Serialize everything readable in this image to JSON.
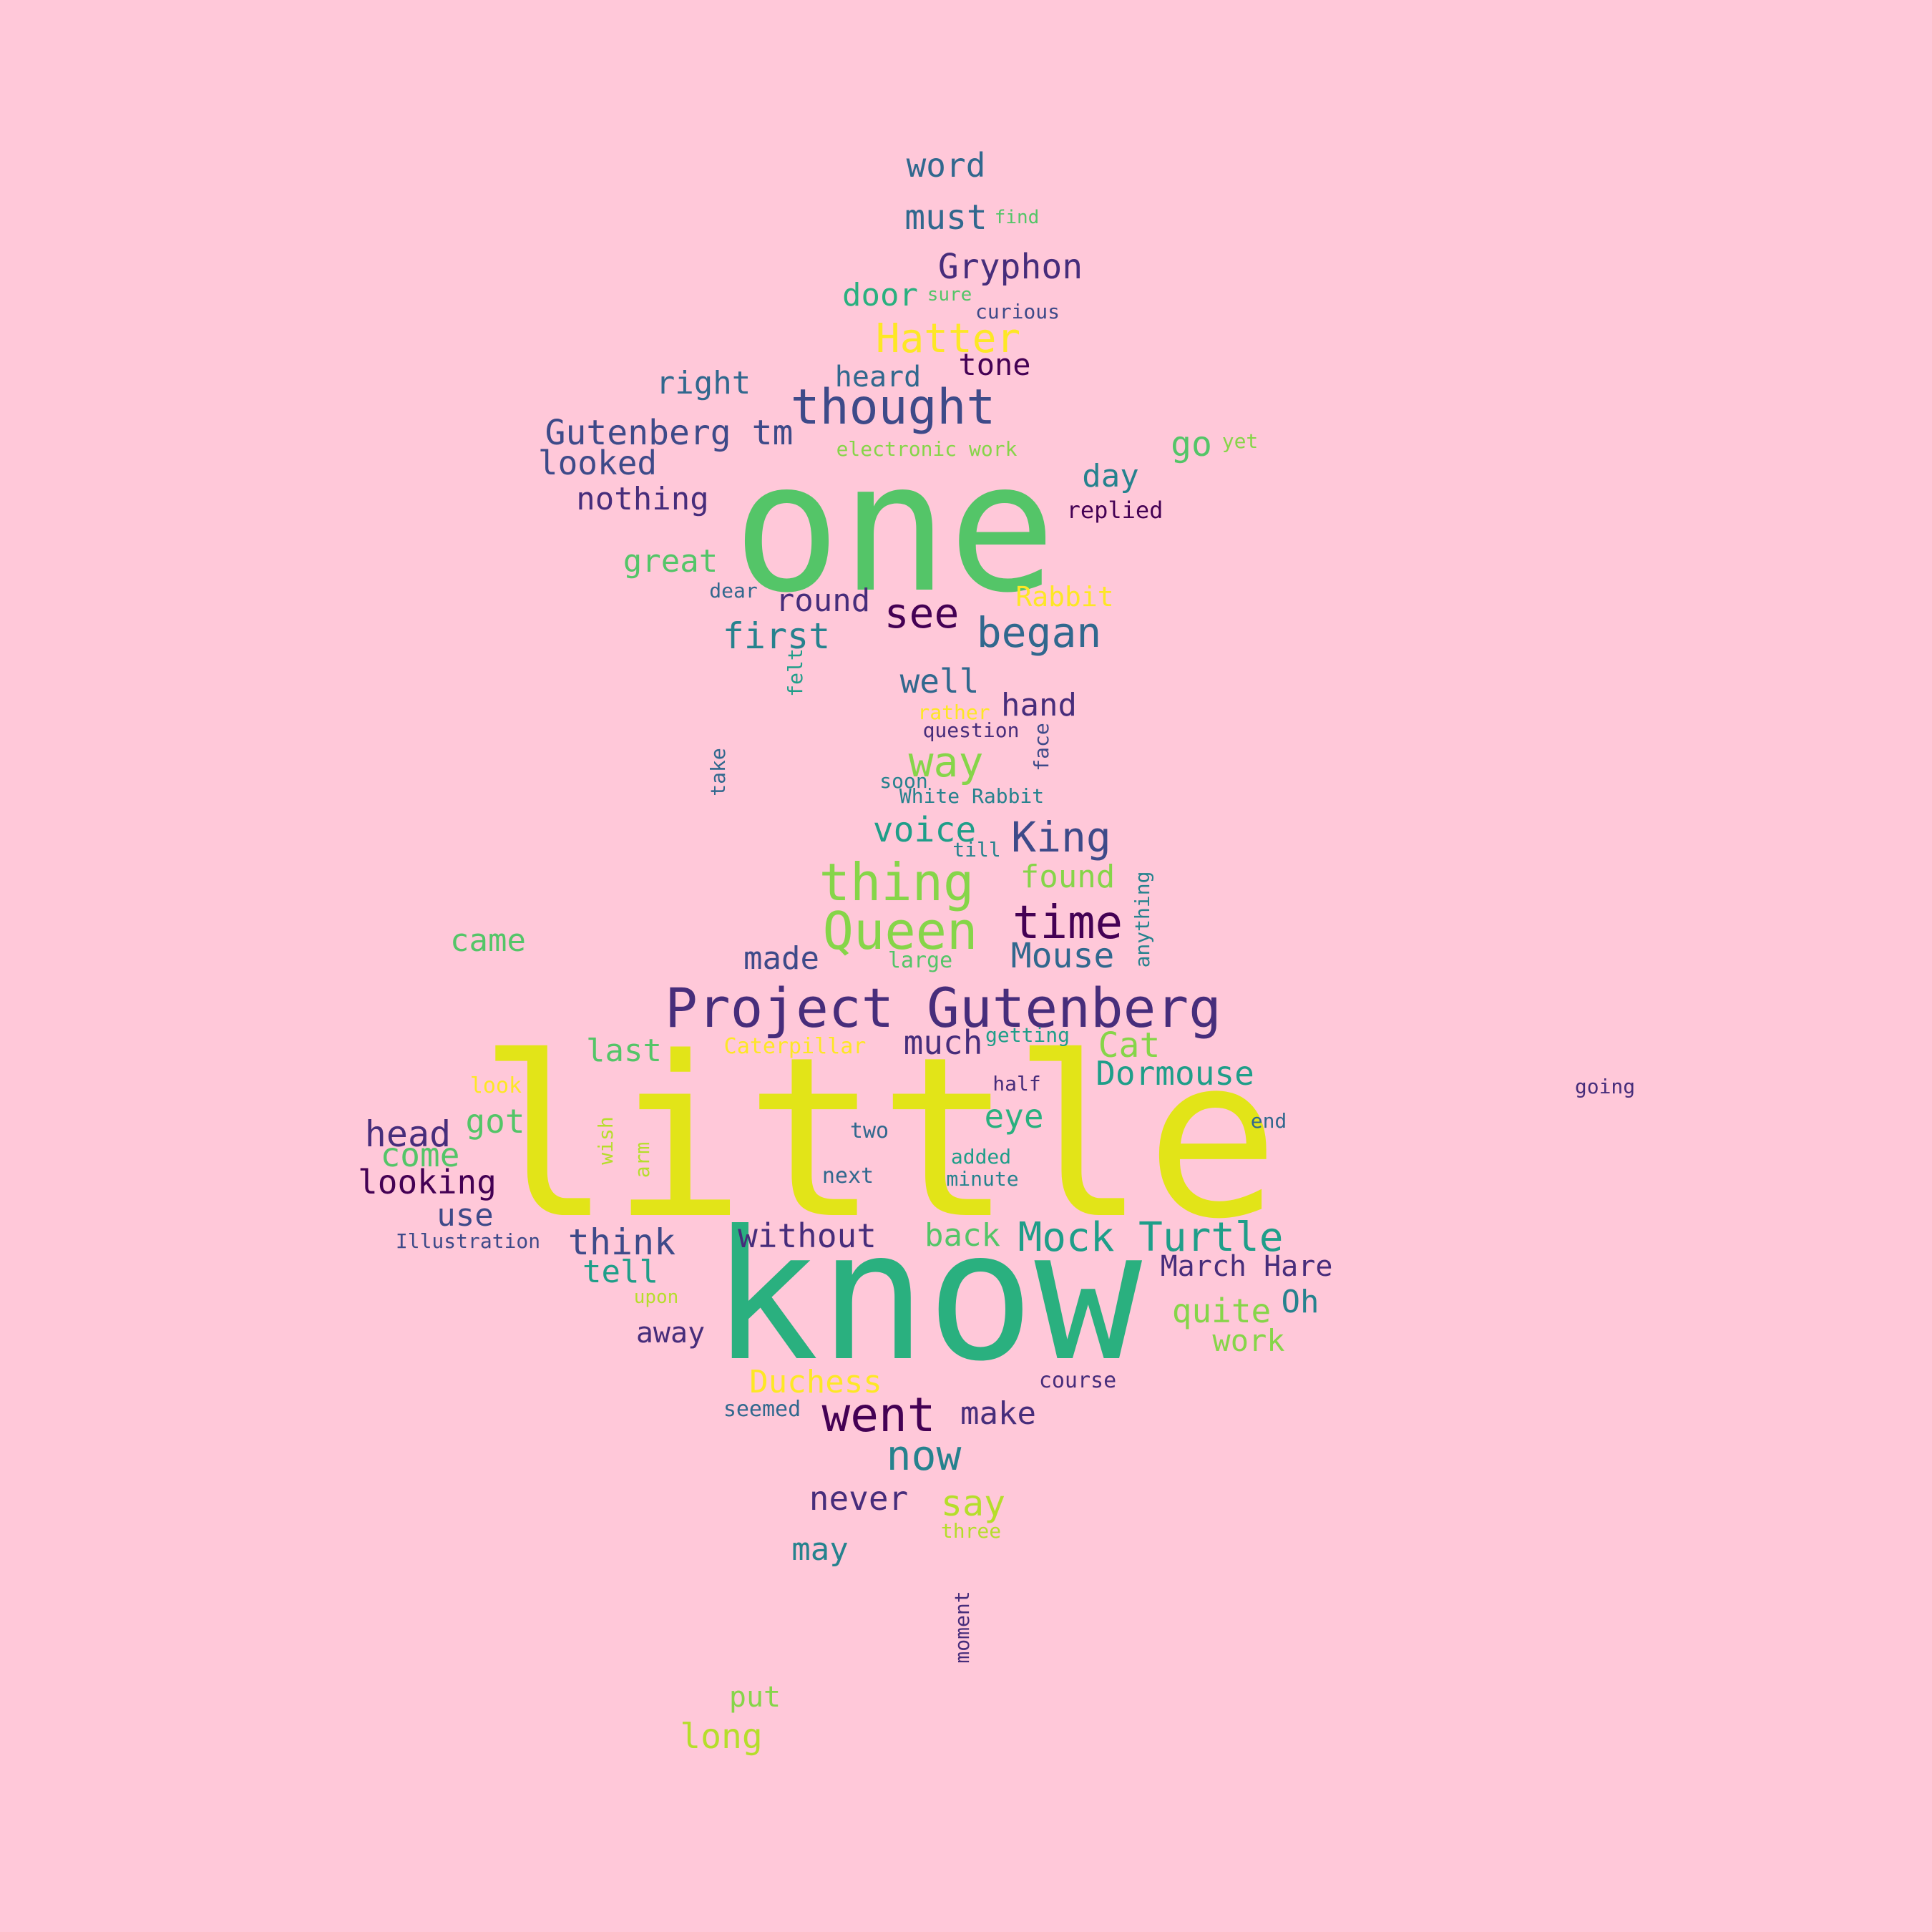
{
  "colors": {
    "background": "#ffc8d9",
    "palette": {
      "yellow": "#e2e418",
      "yellow2": "#fde725",
      "yellowgreen": "#b5de2b",
      "lightgreen": "#86d549",
      "green": "#54c568",
      "teal": "#2ab07f",
      "tealdark": "#1f9e89",
      "cyan": "#26828e",
      "blue": "#31688e",
      "indigo": "#3e4a89",
      "purple": "#472d7b",
      "darkpurple": "#440154"
    }
  },
  "words": [
    {
      "text": "little",
      "color": "yellow"
    },
    {
      "text": "one",
      "color": "green"
    },
    {
      "text": "know",
      "color": "teal"
    },
    {
      "text": "Project Gutenberg",
      "color": "purple"
    },
    {
      "text": "thought",
      "color": "indigo"
    },
    {
      "text": "thing",
      "color": "lightgreen"
    },
    {
      "text": "Queen",
      "color": "lightgreen"
    },
    {
      "text": "time",
      "color": "darkpurple"
    },
    {
      "text": "went",
      "color": "darkpurple"
    },
    {
      "text": "Mock Turtle",
      "color": "tealdark"
    },
    {
      "text": "began",
      "color": "blue"
    },
    {
      "text": "see",
      "color": "darkpurple"
    },
    {
      "text": "Hatter",
      "color": "yellow2"
    },
    {
      "text": "way",
      "color": "lightgreen"
    },
    {
      "text": "King",
      "color": "indigo"
    },
    {
      "text": "now",
      "color": "cyan"
    },
    {
      "text": "Gutenberg tm",
      "color": "indigo"
    },
    {
      "text": "Gryphon",
      "color": "purple"
    },
    {
      "text": "first",
      "color": "cyan"
    },
    {
      "text": "word",
      "color": "blue"
    },
    {
      "text": "must",
      "color": "blue"
    },
    {
      "text": "Dormouse",
      "color": "tealdark"
    },
    {
      "text": "Mouse",
      "color": "blue"
    },
    {
      "text": "think",
      "color": "indigo"
    },
    {
      "text": "without",
      "color": "purple"
    },
    {
      "text": "say",
      "color": "yellowgreen"
    },
    {
      "text": "never",
      "color": "purple"
    },
    {
      "text": "head",
      "color": "purple"
    },
    {
      "text": "looking",
      "color": "darkpurple"
    },
    {
      "text": "voice",
      "color": "tealdark"
    },
    {
      "text": "much",
      "color": "purple"
    },
    {
      "text": "Cat",
      "color": "lightgreen"
    },
    {
      "text": "eye",
      "color": "teal"
    },
    {
      "text": "quite",
      "color": "lightgreen"
    },
    {
      "text": "got",
      "color": "green"
    },
    {
      "text": "come",
      "color": "green"
    },
    {
      "text": "well",
      "color": "blue"
    },
    {
      "text": "looked",
      "color": "indigo"
    },
    {
      "text": "right",
      "color": "blue"
    },
    {
      "text": "nothing",
      "color": "purple"
    },
    {
      "text": "great",
      "color": "green"
    },
    {
      "text": "round",
      "color": "purple"
    },
    {
      "text": "go",
      "color": "green"
    },
    {
      "text": "day",
      "color": "cyan"
    },
    {
      "text": "hand",
      "color": "purple"
    },
    {
      "text": "found",
      "color": "lightgreen"
    },
    {
      "text": "made",
      "color": "indigo"
    },
    {
      "text": "last",
      "color": "green"
    },
    {
      "text": "back",
      "color": "green"
    },
    {
      "text": "make",
      "color": "purple"
    },
    {
      "text": "Duchess",
      "color": "yellow2"
    },
    {
      "text": "Oh",
      "color": "cyan"
    },
    {
      "text": "work",
      "color": "lightgreen"
    },
    {
      "text": "may",
      "color": "cyan"
    },
    {
      "text": "tell",
      "color": "tealdark"
    },
    {
      "text": "use",
      "color": "indigo"
    },
    {
      "text": "away",
      "color": "purple"
    },
    {
      "text": "came",
      "color": "green"
    },
    {
      "text": "tone",
      "color": "darkpurple"
    },
    {
      "text": "door",
      "color": "teal"
    },
    {
      "text": "heard",
      "color": "blue"
    },
    {
      "text": "March Hare",
      "color": "purple"
    },
    {
      "text": "put",
      "color": "lightgreen"
    },
    {
      "text": "long",
      "color": "yellowgreen"
    },
    {
      "text": "Rabbit",
      "color": "yellow2"
    },
    {
      "text": "replied",
      "color": "darkpurple"
    },
    {
      "text": "electronic work",
      "color": "lightgreen"
    },
    {
      "text": "yet",
      "color": "lightgreen"
    },
    {
      "text": "find",
      "color": "green"
    },
    {
      "text": "sure",
      "color": "green"
    },
    {
      "text": "curious",
      "color": "indigo"
    },
    {
      "text": "dear",
      "color": "blue"
    },
    {
      "text": "felt",
      "color": "tealdark"
    },
    {
      "text": "rather",
      "color": "yellow2"
    },
    {
      "text": "question",
      "color": "purple"
    },
    {
      "text": "face",
      "color": "indigo"
    },
    {
      "text": "take",
      "color": "blue"
    },
    {
      "text": "soon",
      "color": "cyan"
    },
    {
      "text": "White Rabbit",
      "color": "cyan"
    },
    {
      "text": "till",
      "color": "cyan"
    },
    {
      "text": "anything",
      "color": "cyan"
    },
    {
      "text": "large",
      "color": "green"
    },
    {
      "text": "Caterpillar",
      "color": "yellow2"
    },
    {
      "text": "getting",
      "color": "tealdark"
    },
    {
      "text": "half",
      "color": "purple"
    },
    {
      "text": "look",
      "color": "yellow2"
    },
    {
      "text": "wish",
      "color": "yellowgreen"
    },
    {
      "text": "arm",
      "color": "yellowgreen"
    },
    {
      "text": "two",
      "color": "blue"
    },
    {
      "text": "added",
      "color": "tealdark"
    },
    {
      "text": "minute",
      "color": "cyan"
    },
    {
      "text": "next",
      "color": "blue"
    },
    {
      "text": "end",
      "color": "blue"
    },
    {
      "text": "going",
      "color": "purple"
    },
    {
      "text": "Illustration",
      "color": "indigo"
    },
    {
      "text": "upon",
      "color": "yellowgreen"
    },
    {
      "text": "course",
      "color": "purple"
    },
    {
      "text": "seemed",
      "color": "blue"
    },
    {
      "text": "three",
      "color": "yellowgreen"
    },
    {
      "text": "moment",
      "color": "purple"
    }
  ]
}
